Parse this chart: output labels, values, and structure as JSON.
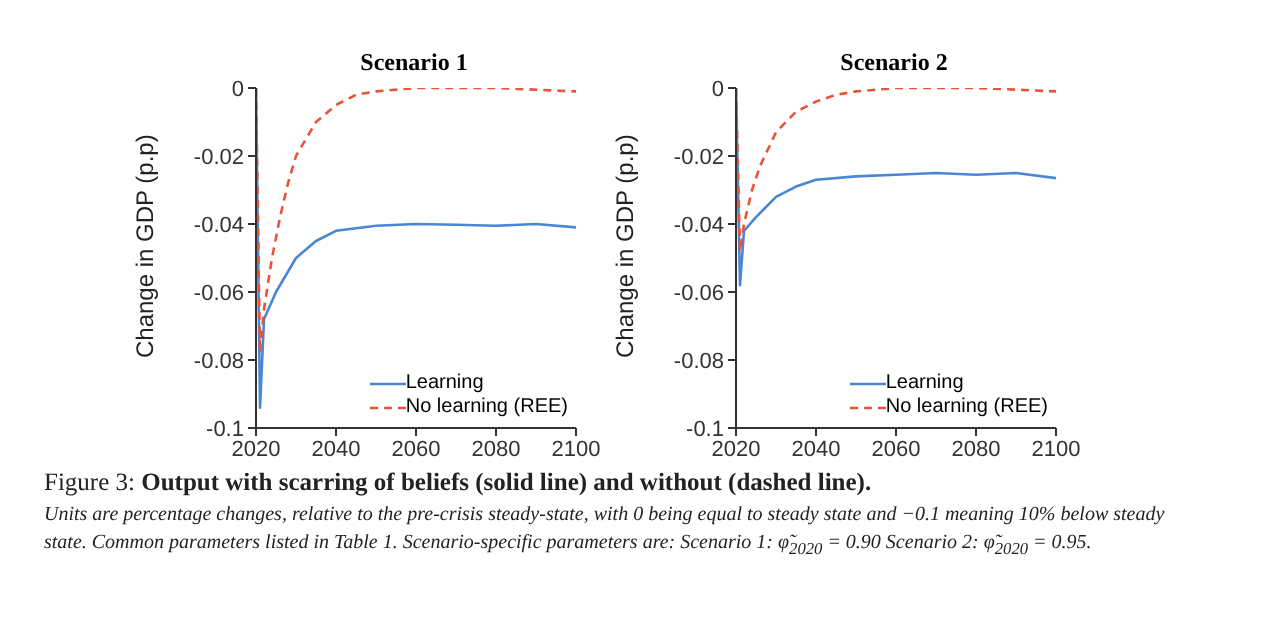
{
  "chart_data": [
    {
      "type": "line",
      "title": "Scenario 1",
      "ylabel": "Change in GDP (p.p)",
      "xlim": [
        2020,
        2100
      ],
      "xticks": [
        2020,
        2040,
        2060,
        2080,
        2100
      ],
      "ylim": [
        -0.1,
        0
      ],
      "yticks": [
        -0.1,
        -0.08,
        -0.06,
        -0.04,
        -0.02,
        0
      ],
      "legend": "bottom right",
      "marker": "none",
      "series": [
        {
          "name": "Learning",
          "color": "#4a86d4",
          "line_style": "solid",
          "x": [
            2020,
            2021,
            2022,
            2025,
            2030,
            2035,
            2040,
            2050,
            2060,
            2070,
            2080,
            2090,
            2100
          ],
          "values": [
            0,
            -0.094,
            -0.068,
            -0.06,
            -0.05,
            -0.045,
            -0.042,
            -0.0405,
            -0.04,
            -0.0402,
            -0.0405,
            -0.04,
            -0.041
          ]
        },
        {
          "name": "No learning (REE)",
          "color": "#e8543a",
          "line_style": "dashed",
          "x": [
            2020,
            2021,
            2022,
            2024,
            2026,
            2028,
            2030,
            2035,
            2040,
            2045,
            2050,
            2060,
            2080,
            2100
          ],
          "values": [
            0,
            -0.078,
            -0.065,
            -0.05,
            -0.038,
            -0.028,
            -0.02,
            -0.01,
            -0.005,
            -0.002,
            -0.001,
            0,
            0,
            -0.001
          ]
        }
      ]
    },
    {
      "type": "line",
      "title": "Scenario 2",
      "ylabel": "Change in GDP (p.p)",
      "xlim": [
        2020,
        2100
      ],
      "xticks": [
        2020,
        2040,
        2060,
        2080,
        2100
      ],
      "ylim": [
        -0.1,
        0
      ],
      "yticks": [
        -0.1,
        -0.08,
        -0.06,
        -0.04,
        -0.02,
        0
      ],
      "legend": "bottom right",
      "marker": "none",
      "series": [
        {
          "name": "Learning",
          "color": "#4a86d4",
          "line_style": "solid",
          "x": [
            2020,
            2021,
            2022,
            2025,
            2030,
            2035,
            2040,
            2050,
            2060,
            2070,
            2080,
            2090,
            2100
          ],
          "values": [
            0,
            -0.058,
            -0.042,
            -0.038,
            -0.032,
            -0.029,
            -0.027,
            -0.026,
            -0.0255,
            -0.025,
            -0.0255,
            -0.025,
            -0.0265
          ]
        },
        {
          "name": "No learning (REE)",
          "color": "#e8543a",
          "line_style": "dashed",
          "x": [
            2020,
            2021,
            2022,
            2024,
            2026,
            2028,
            2030,
            2035,
            2040,
            2045,
            2050,
            2060,
            2080,
            2100
          ],
          "values": [
            0,
            -0.048,
            -0.04,
            -0.03,
            -0.023,
            -0.018,
            -0.013,
            -0.007,
            -0.004,
            -0.002,
            -0.001,
            0,
            0,
            -0.001
          ]
        }
      ]
    },
    {
      "type": "other",
      "annotations": [
        "Figure 3:",
        "Output with scarring of beliefs (solid line) and without (dashed line).",
        "Units are percentage changes, relative to the pre-crisis steady-state, with 0 being equal to steady state and −0.1 meaning 10% below steady state.  Common parameters listed in Table 1.  Scenario-specific parameters are: Scenario 1: φ̃$_{2020}$ = 0.90 Scenario 2: φ̃$_{2020}$ = 0.95."
      ]
    }
  ]
}
